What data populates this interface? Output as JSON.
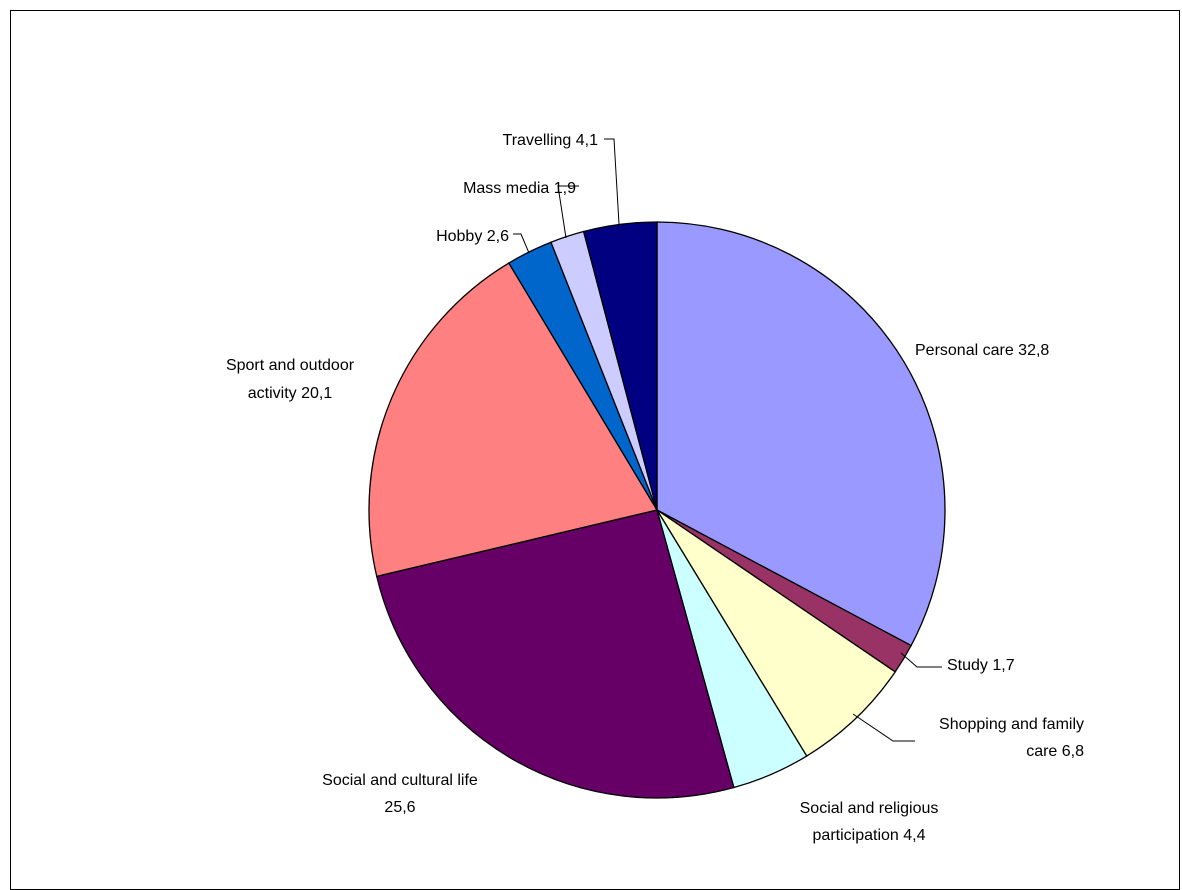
{
  "chart_data": {
    "type": "pie",
    "title": "",
    "slices": [
      {
        "label": "Personal care 32,8",
        "value": 32.8,
        "color": "#9999FF"
      },
      {
        "label": "Study 1,7",
        "value": 1.7,
        "color": "#993366"
      },
      {
        "label": "Shopping and family care 6,8",
        "value": 6.8,
        "color": "#FFFFCC"
      },
      {
        "label": "Social and religious participation 4,4",
        "value": 4.4,
        "color": "#CCFFFF"
      },
      {
        "label": "Social and cultural life 25,6",
        "value": 25.6,
        "color": "#660066"
      },
      {
        "label": "Sport and outdoor activity 20,1",
        "value": 20.1,
        "color": "#FF8080"
      },
      {
        "label": "Hobby 2,6",
        "value": 2.6,
        "color": "#0066CC"
      },
      {
        "label": "Mass media 1,9",
        "value": 1.9,
        "color": "#CCCCFF"
      },
      {
        "label": "Travelling 4,1",
        "value": 4.1,
        "color": "#000080"
      }
    ],
    "start_angle": "12 o'clock",
    "direction": "clockwise",
    "legend": "none"
  }
}
